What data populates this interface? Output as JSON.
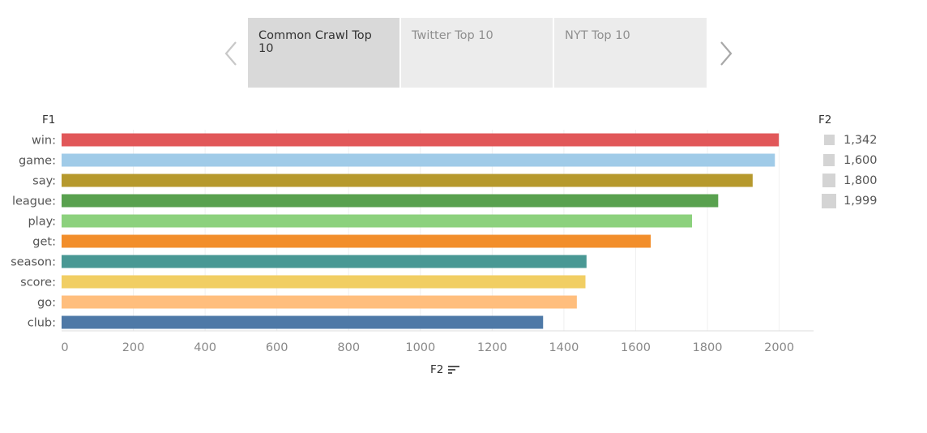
{
  "tabs": [
    {
      "label": "Common Crawl Top 10",
      "active": true
    },
    {
      "label": "Twitter Top 10",
      "active": false
    },
    {
      "label": "NYT Top 10",
      "active": false
    }
  ],
  "nav": {
    "prev_icon": "chevron-left-icon",
    "next_icon": "chevron-right-icon"
  },
  "chart_data": {
    "type": "bar",
    "orientation": "horizontal",
    "categories": [
      "win:",
      "game:",
      "say:",
      "league:",
      "play:",
      "get:",
      "season:",
      "score:",
      "go:",
      "club:"
    ],
    "values": [
      1999,
      1988,
      1926,
      1830,
      1757,
      1642,
      1463,
      1460,
      1436,
      1342
    ],
    "colors": [
      "#e15759",
      "#a0cbe8",
      "#b6992d",
      "#59a14f",
      "#8cd17d",
      "#f28e2b",
      "#499894",
      "#f1ce63",
      "#ffbe7d",
      "#4e79a7"
    ],
    "ylabel": "F1",
    "xlabel": "F2",
    "xlim": [
      0,
      2100
    ],
    "xticks": [
      0,
      200,
      400,
      600,
      800,
      1000,
      1200,
      1400,
      1600,
      1800,
      2000
    ],
    "grid": true,
    "legend": {
      "title": "F2",
      "placement": "right",
      "items": [
        {
          "label": "1,342",
          "value": 1342
        },
        {
          "label": "1,600",
          "value": 1600
        },
        {
          "label": "1,800",
          "value": 1800
        },
        {
          "label": "1,999",
          "value": 1999
        }
      ]
    }
  }
}
